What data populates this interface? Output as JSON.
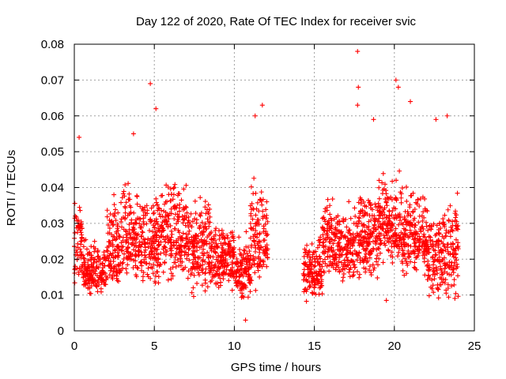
{
  "chart_data": {
    "type": "scatter",
    "title": "Day 122 of 2020, Rate Of TEC Index for receiver svic",
    "xlabel": "GPS time / hours",
    "ylabel": "ROTI / TECUs",
    "xlim": [
      0,
      25
    ],
    "ylim": [
      0,
      0.08
    ],
    "xticks": [
      0,
      5,
      10,
      15,
      20,
      25
    ],
    "yticks": [
      0,
      0.01,
      0.02,
      0.03,
      0.04,
      0.05,
      0.06,
      0.07,
      0.08
    ],
    "xtick_labels": [
      "0",
      "5",
      "10",
      "15",
      "20",
      "25"
    ],
    "ytick_labels": [
      "0",
      "0.01",
      "0.02",
      "0.03",
      "0.04",
      "0.05",
      "0.06",
      "0.07",
      "0.08"
    ],
    "grid": true,
    "legend": "none",
    "marker": "+",
    "color": "#ff0000",
    "data_gap_hours": [
      12.1,
      14.3
    ],
    "notable_points": [
      {
        "x": 17.7,
        "y": 0.078
      },
      {
        "x": 17.75,
        "y": 0.068
      },
      {
        "x": 17.7,
        "y": 0.063
      },
      {
        "x": 4.75,
        "y": 0.069
      },
      {
        "x": 20.1,
        "y": 0.07
      },
      {
        "x": 20.25,
        "y": 0.068
      },
      {
        "x": 21.0,
        "y": 0.064
      },
      {
        "x": 11.75,
        "y": 0.063
      },
      {
        "x": 5.1,
        "y": 0.062
      },
      {
        "x": 23.3,
        "y": 0.06
      },
      {
        "x": 22.6,
        "y": 0.059
      },
      {
        "x": 18.7,
        "y": 0.059
      },
      {
        "x": 11.3,
        "y": 0.06
      },
      {
        "x": 0.3,
        "y": 0.054
      },
      {
        "x": 3.7,
        "y": 0.055
      },
      {
        "x": 10.7,
        "y": 0.003
      },
      {
        "x": 19.5,
        "y": 0.0085
      }
    ],
    "density_profile": [
      {
        "x_start": 0.0,
        "x_end": 0.5,
        "y_min": 0.01,
        "y_max": 0.045
      },
      {
        "x_start": 0.5,
        "x_end": 2.0,
        "y_min": 0.007,
        "y_max": 0.03
      },
      {
        "x_start": 2.0,
        "x_end": 3.0,
        "y_min": 0.008,
        "y_max": 0.045
      },
      {
        "x_start": 3.0,
        "x_end": 4.0,
        "y_min": 0.009,
        "y_max": 0.05
      },
      {
        "x_start": 4.0,
        "x_end": 5.5,
        "y_min": 0.01,
        "y_max": 0.045
      },
      {
        "x_start": 5.5,
        "x_end": 7.0,
        "y_min": 0.01,
        "y_max": 0.05
      },
      {
        "x_start": 7.0,
        "x_end": 8.5,
        "y_min": 0.008,
        "y_max": 0.045
      },
      {
        "x_start": 8.5,
        "x_end": 10.0,
        "y_min": 0.009,
        "y_max": 0.035
      },
      {
        "x_start": 10.0,
        "x_end": 11.0,
        "y_min": 0.007,
        "y_max": 0.03
      },
      {
        "x_start": 11.0,
        "x_end": 12.1,
        "y_min": 0.008,
        "y_max": 0.05
      },
      {
        "x_start": 14.3,
        "x_end": 15.5,
        "y_min": 0.007,
        "y_max": 0.03
      },
      {
        "x_start": 15.5,
        "x_end": 16.5,
        "y_min": 0.01,
        "y_max": 0.045
      },
      {
        "x_start": 16.5,
        "x_end": 17.5,
        "y_min": 0.01,
        "y_max": 0.04
      },
      {
        "x_start": 17.5,
        "x_end": 19.0,
        "y_min": 0.012,
        "y_max": 0.045
      },
      {
        "x_start": 19.0,
        "x_end": 20.5,
        "y_min": 0.015,
        "y_max": 0.05
      },
      {
        "x_start": 20.5,
        "x_end": 22.0,
        "y_min": 0.012,
        "y_max": 0.045
      },
      {
        "x_start": 22.0,
        "x_end": 23.0,
        "y_min": 0.007,
        "y_max": 0.04
      },
      {
        "x_start": 23.0,
        "x_end": 24.0,
        "y_min": 0.006,
        "y_max": 0.045
      }
    ]
  }
}
